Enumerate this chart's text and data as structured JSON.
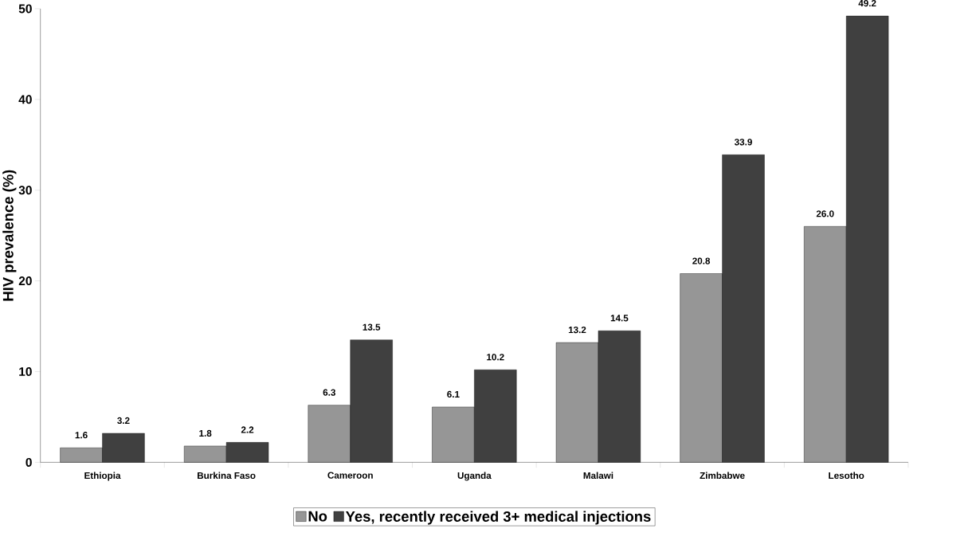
{
  "chart_data": {
    "type": "bar",
    "ylabel": "HIV prevalence (%)",
    "categories": [
      "Ethiopia",
      "Burkina Faso",
      "Cameroon",
      "Uganda",
      "Malawi",
      "Zimbabwe",
      "Lesotho"
    ],
    "series": [
      {
        "name": "No",
        "color": "#969696",
        "values": [
          1.6,
          1.8,
          6.3,
          6.1,
          13.2,
          20.8,
          26.0
        ],
        "value_labels": [
          "1.6",
          "1.8",
          "6.3",
          "6.1",
          "13.2",
          "20.8",
          "26.0"
        ]
      },
      {
        "name": "Yes, recently received 3+ medical injections",
        "color": "#404040",
        "values": [
          3.2,
          2.2,
          13.5,
          10.2,
          14.5,
          33.9,
          49.2
        ],
        "value_labels": [
          "3.2",
          "2.2",
          "13.5",
          "10.2",
          "14.5",
          "33.9",
          "49.2"
        ]
      }
    ],
    "ylim": [
      0,
      50
    ],
    "yticks": [
      0,
      10,
      20,
      30,
      40,
      50
    ],
    "grid": false,
    "legend": "bottom"
  }
}
